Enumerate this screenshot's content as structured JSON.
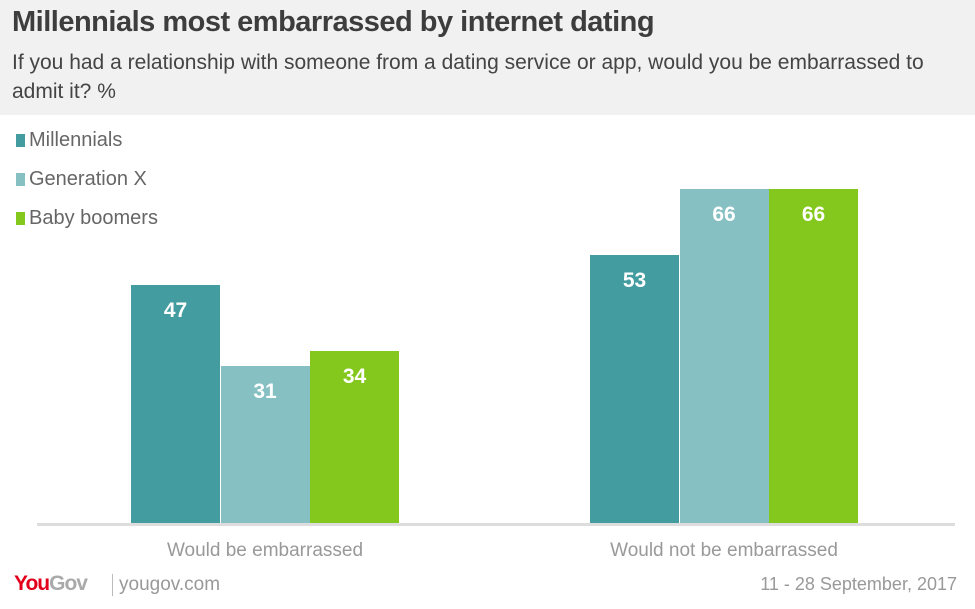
{
  "chart_data": {
    "type": "bar",
    "title": "Millennials most embarrassed by internet dating",
    "subtitle": "If you had a relationship with someone from a dating service or app, would you be embarrassed to admit it? %",
    "categories": [
      "Would be embarrassed",
      "Would not be embarrassed"
    ],
    "series": [
      {
        "name": "Millennials",
        "color": "#439c9f",
        "values": [
          47,
          53
        ]
      },
      {
        "name": "Generation X",
        "color": "#87c0c3",
        "values": [
          31,
          66
        ]
      },
      {
        "name": "Baby boomers",
        "color": "#84c81e",
        "values": [
          34,
          66
        ]
      }
    ],
    "ylim": [
      0,
      66
    ],
    "legend": "top-left",
    "grid": false
  },
  "footer": {
    "brand": "YouGov",
    "site": "yougov.com",
    "date": "11 - 28 September, 2017"
  }
}
